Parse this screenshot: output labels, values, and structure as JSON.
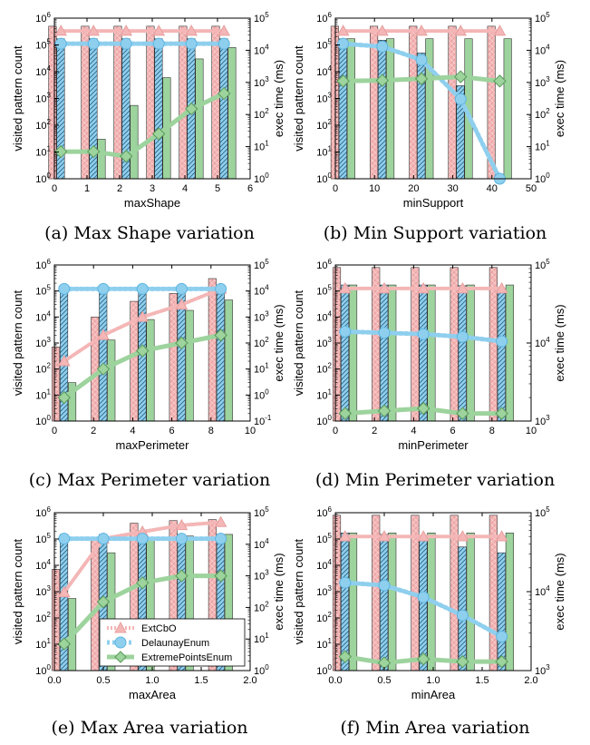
{
  "legend": {
    "entries": [
      "ExtCbO",
      "DelaunayEnum",
      "ExtremePointsEnum"
    ],
    "placement": "lower-right of panel (e)"
  },
  "colors": {
    "ExtCbO": "#f4b6b6",
    "DelaunayEnum": "#8fcfee",
    "ExtremePointsEnum": "#9dd39d",
    "ExtCbO_edge": "#e8a0a0",
    "DelaunayEnum_edge": "#5bb4e0",
    "ExtremePointsEnum_edge": "#6cbf6c"
  },
  "chart_data": [
    {
      "panel": "a",
      "type": "bar+line",
      "caption": "(a) Max Shape variation",
      "xlabel": "maxShape",
      "ylabel": "visited pattern count",
      "y2label": "exec time (ms)",
      "xlim": [
        0,
        6
      ],
      "xticks": [
        "0",
        "1",
        "2",
        "3",
        "4",
        "5",
        "6"
      ],
      "ylim_exp": [
        0,
        6
      ],
      "y2lim_exp": [
        0,
        5
      ],
      "yticks": [
        "10^0",
        "10^1",
        "10^2",
        "10^3",
        "10^4",
        "10^5",
        "10^6"
      ],
      "y2ticks": [
        "10^0",
        "10^1",
        "10^2",
        "10^3",
        "10^4",
        "10^5"
      ],
      "x": [
        0.2,
        1.2,
        2.2,
        3.2,
        4.2,
        5.2
      ],
      "bars": {
        "ExtCbO": [
          500000,
          500000,
          500000,
          500000,
          500000,
          500000
        ],
        "DelaunayEnum": [
          170000,
          170000,
          170000,
          170000,
          170000,
          170000
        ],
        "ExtremePointsEnum": [
          1,
          30,
          550,
          6000,
          30000,
          80000
        ]
      },
      "lines": {
        "ExtCbO": [
          40000,
          40000,
          40000,
          40000,
          40000,
          40000
        ],
        "DelaunayEnum": [
          16000,
          16000,
          16000,
          16000,
          16000,
          16000
        ],
        "ExtremePointsEnum": [
          7,
          7,
          5,
          25,
          150,
          450
        ]
      }
    },
    {
      "panel": "b",
      "type": "bar+line",
      "caption": "(b) Min Support variation",
      "xlabel": "minSupport",
      "ylabel": "visited pattern count",
      "y2label": "exec time (ms)",
      "xlim": [
        0,
        50
      ],
      "xticks": [
        "0",
        "10",
        "20",
        "30",
        "40",
        "50"
      ],
      "ylim_exp": [
        0,
        6
      ],
      "y2lim_exp": [
        0,
        5
      ],
      "yticks": [
        "10^0",
        "10^1",
        "10^2",
        "10^3",
        "10^4",
        "10^5",
        "10^6"
      ],
      "y2ticks": [
        "10^0",
        "10^1",
        "10^2",
        "10^3",
        "10^4",
        "10^5"
      ],
      "x": [
        2,
        12,
        22,
        32,
        42
      ],
      "bars": {
        "ExtCbO": [
          500000,
          500000,
          500000,
          500000,
          500000
        ],
        "DelaunayEnum": [
          170000,
          150000,
          50000,
          3000,
          1
        ],
        "ExtremePointsEnum": [
          170000,
          170000,
          170000,
          170000,
          170000
        ]
      },
      "lines": {
        "ExtCbO": [
          40000,
          40000,
          40000,
          40000,
          40000
        ],
        "DelaunayEnum": [
          16000,
          13000,
          5000,
          300,
          1
        ],
        "ExtremePointsEnum": [
          1100,
          1150,
          1300,
          1500,
          1100
        ]
      }
    },
    {
      "panel": "c",
      "type": "bar+line",
      "caption": "(c) Max Perimeter variation",
      "xlabel": "maxPerimeter",
      "ylabel": "visited pattern count",
      "y2label": "exec time (ms)",
      "xlim": [
        0,
        10
      ],
      "xticks": [
        "0",
        "2",
        "4",
        "6",
        "8",
        "10"
      ],
      "ylim_exp": [
        0,
        6
      ],
      "y2lim_exp": [
        -1,
        5
      ],
      "yticks": [
        "10^0",
        "10^1",
        "10^2",
        "10^3",
        "10^4",
        "10^5",
        "10^6"
      ],
      "y2ticks": [
        "10^-1",
        "10^0",
        "10^1",
        "10^2",
        "10^3",
        "10^4",
        "10^5"
      ],
      "x": [
        0.5,
        2.5,
        4.5,
        6.5,
        8.5
      ],
      "bars": {
        "ExtCbO": [
          700,
          10000,
          40000,
          80000,
          300000
        ],
        "DelaunayEnum": [
          150000,
          150000,
          150000,
          150000,
          150000
        ],
        "ExtremePointsEnum": [
          30,
          1300,
          8000,
          18000,
          45000
        ]
      },
      "lines": {
        "ExtCbO": [
          20,
          200,
          1000,
          3000,
          12000
        ],
        "DelaunayEnum": [
          12000,
          12000,
          12000,
          12000,
          12000
        ],
        "ExtremePointsEnum": [
          0.8,
          10,
          50,
          100,
          200
        ]
      }
    },
    {
      "panel": "d",
      "type": "bar+line",
      "caption": "(d) Min Perimeter variation",
      "xlabel": "minPerimeter",
      "ylabel": "visited pattern count",
      "y2label": "exec time (ms)",
      "xlim": [
        0,
        10
      ],
      "xticks": [
        "0",
        "2",
        "4",
        "6",
        "8",
        "10"
      ],
      "ylim_exp": [
        0,
        6
      ],
      "y2lim_exp": [
        3,
        5
      ],
      "yticks": [
        "10^0",
        "10^1",
        "10^2",
        "10^3",
        "10^4",
        "10^5",
        "10^6"
      ],
      "y2ticks": [
        "10^3",
        "10^4",
        "10^5"
      ],
      "x": [
        0.5,
        2.5,
        4.5,
        6.5,
        8.5
      ],
      "bars": {
        "ExtCbO": [
          800000,
          800000,
          800000,
          800000,
          800000
        ],
        "DelaunayEnum": [
          170000,
          170000,
          170000,
          160000,
          120000
        ],
        "ExtremePointsEnum": [
          170000,
          170000,
          170000,
          170000,
          170000
        ]
      },
      "lines": {
        "ExtCbO": [
          50000,
          50000,
          50000,
          50000,
          50000
        ],
        "DelaunayEnum": [
          14000,
          13500,
          13000,
          12000,
          10500
        ],
        "ExtremePointsEnum": [
          1250,
          1350,
          1450,
          1250,
          1250
        ]
      }
    },
    {
      "panel": "e",
      "type": "bar+line",
      "caption": "(e) Max Area variation",
      "xlabel": "maxArea",
      "ylabel": "visited pattern count",
      "y2label": "exec time (ms)",
      "xlim": [
        0,
        2
      ],
      "xticks": [
        "0.0",
        "0.5",
        "1.0",
        "1.5",
        "2.0"
      ],
      "ylim_exp": [
        0,
        6
      ],
      "y2lim_exp": [
        0,
        5
      ],
      "yticks": [
        "10^0",
        "10^1",
        "10^2",
        "10^3",
        "10^4",
        "10^5",
        "10^6"
      ],
      "y2ticks": [
        "10^0",
        "10^1",
        "10^2",
        "10^3",
        "10^4",
        "10^5"
      ],
      "x": [
        0.1,
        0.5,
        0.9,
        1.3,
        1.7
      ],
      "bars": {
        "ExtCbO": [
          7000,
          100000,
          400000,
          500000,
          550000
        ],
        "DelaunayEnum": [
          150000,
          150000,
          150000,
          150000,
          150000
        ],
        "ExtremePointsEnum": [
          550,
          30000,
          100000,
          130000,
          150000
        ]
      },
      "lines": {
        "ExtCbO": [
          300,
          15000,
          25000,
          40000,
          50000
        ],
        "DelaunayEnum": [
          15000,
          15000,
          15000,
          15000,
          15000
        ],
        "ExtremePointsEnum": [
          7,
          150,
          600,
          1000,
          1000
        ]
      }
    },
    {
      "panel": "f",
      "type": "bar+line",
      "caption": "(f) Min Area variation",
      "xlabel": "minArea",
      "ylabel": "visited pattern count",
      "y2label": "exec time (ms)",
      "xlim": [
        0,
        2
      ],
      "xticks": [
        "0.0",
        "0.5",
        "1.0",
        "1.5",
        "2.0"
      ],
      "ylim_exp": [
        0,
        6
      ],
      "y2lim_exp": [
        3,
        5
      ],
      "yticks": [
        "10^0",
        "10^1",
        "10^2",
        "10^3",
        "10^4",
        "10^5",
        "10^6"
      ],
      "y2ticks": [
        "10^3",
        "10^4",
        "10^5"
      ],
      "x": [
        0.1,
        0.5,
        0.9,
        1.3,
        1.7
      ],
      "bars": {
        "ExtCbO": [
          800000,
          800000,
          800000,
          800000,
          800000
        ],
        "DelaunayEnum": [
          170000,
          150000,
          120000,
          50000,
          30000
        ],
        "ExtremePointsEnum": [
          170000,
          170000,
          170000,
          170000,
          170000
        ]
      },
      "lines": {
        "ExtCbO": [
          50000,
          50000,
          50000,
          50000,
          50000
        ],
        "DelaunayEnum": [
          13000,
          12000,
          8500,
          5000,
          2700
        ],
        "ExtremePointsEnum": [
          1500,
          1250,
          1400,
          1300,
          1300
        ]
      }
    }
  ]
}
